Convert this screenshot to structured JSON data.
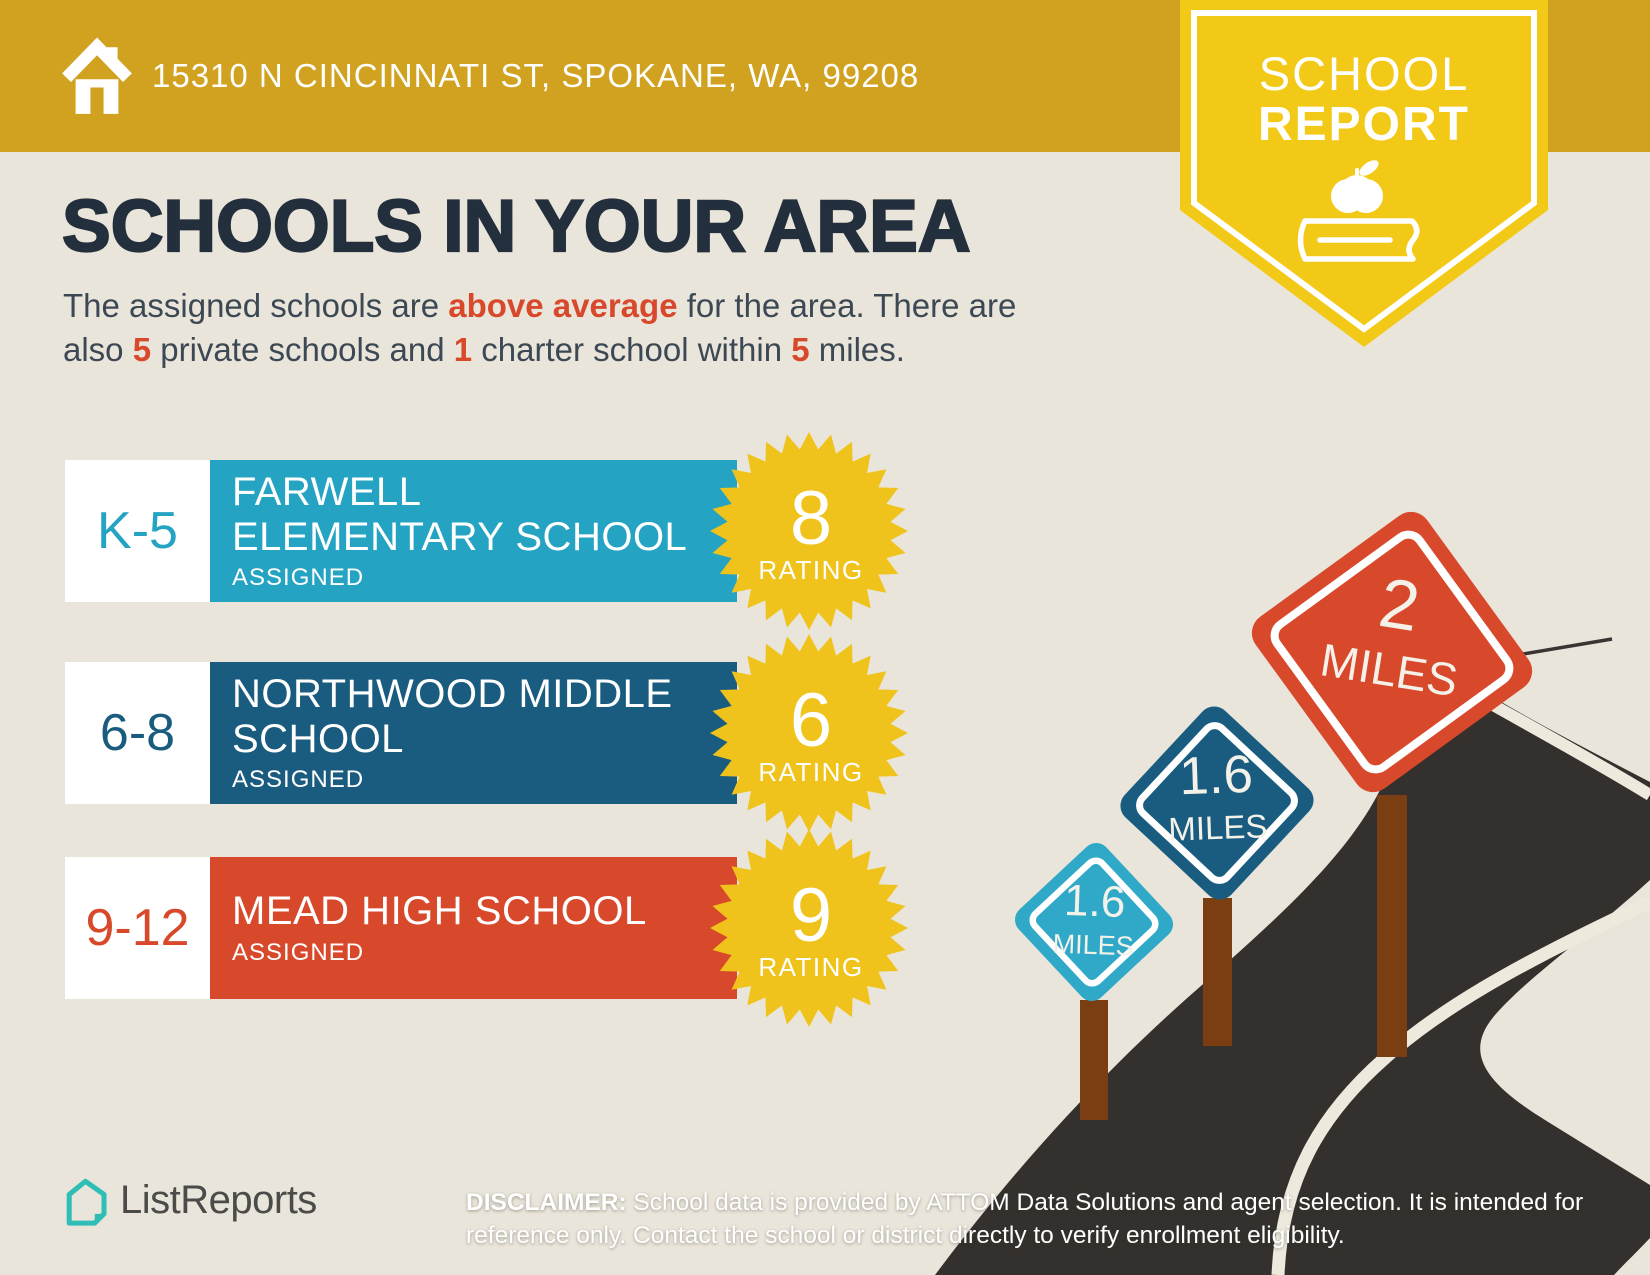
{
  "header": {
    "address": "15310 N CINCINNATI ST, SPOKANE, WA, 99208",
    "bar_color": "#D1A120",
    "ribbon": {
      "line1": "SCHOOL",
      "line2": "REPORT",
      "color": "#F3C917"
    }
  },
  "intro": {
    "title": "SCHOOLS IN YOUR AREA",
    "d0": "The assigned schools are ",
    "d1": "above average",
    "d2": " for the area. There are also ",
    "d3": "5",
    "d4": " private schools and ",
    "d5": "1",
    "d6": " charter school within ",
    "d7": "5",
    "d8": " miles.",
    "accent": "#D8492C"
  },
  "schools": [
    {
      "grades": "K-5",
      "name": "FARWELL ELEMENTARY SCHOOL",
      "status": "ASSIGNED",
      "rating": "8",
      "rating_label": "RATING",
      "color": "#25A3C2"
    },
    {
      "grades": "6-8",
      "name": "NORTHWOOD MIDDLE SCHOOL",
      "status": "ASSIGNED",
      "rating": "6",
      "rating_label": "RATING",
      "color": "#1A5C7F"
    },
    {
      "grades": "9-12",
      "name": "MEAD HIGH SCHOOL",
      "status": "ASSIGNED",
      "rating": "9",
      "rating_label": "RATING",
      "color": "#D8492C"
    }
  ],
  "badge_color": "#EFC31C",
  "signs": [
    {
      "distance": "1.6",
      "unit": "MILES",
      "color": "#2FA9C7"
    },
    {
      "distance": "1.6",
      "unit": "MILES",
      "color": "#1A5C7F"
    },
    {
      "distance": "2",
      "unit": "MILES",
      "color": "#D8492C"
    }
  ],
  "road": {
    "asphalt": "#34302D",
    "line": "#EEE9DD",
    "post": "#7B3E12"
  },
  "footer": {
    "brand": "ListReports",
    "disclaimer_label": "DISCLAIMER:",
    "disclaimer_text": " School data is provided by ATTOM Data Solutions and agent selection. It is intended for reference only. Contact the school or district directly to verify enrollment eligibility."
  }
}
